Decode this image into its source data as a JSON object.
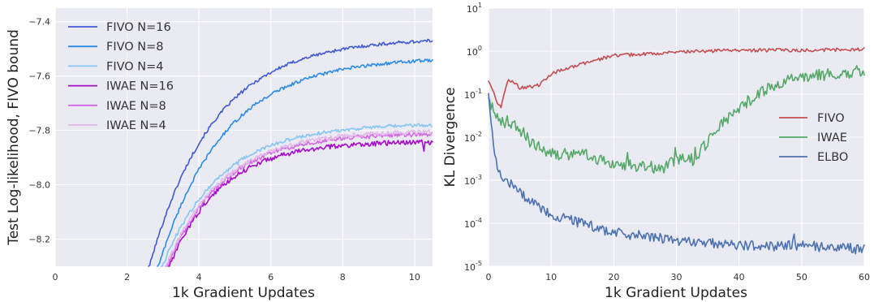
{
  "chart_data": [
    {
      "type": "line",
      "xlabel": "1k Gradient Updates",
      "ylabel": "Test Log-likelihood, FIVO bound",
      "xlim": [
        0,
        10.5
      ],
      "ylim": [
        -8.3,
        -7.35
      ],
      "xticks": [
        0,
        2,
        4,
        6,
        8,
        10
      ],
      "yticks": [
        -8.2,
        -8.0,
        -7.8,
        -7.6,
        -7.4
      ],
      "xtick_labels": [
        "0",
        "2",
        "4",
        "6",
        "8",
        "10"
      ],
      "ytick_labels": [
        "−8.2",
        "−8.0",
        "−7.8",
        "−7.6",
        "−7.4"
      ],
      "grid": true,
      "legend": "top-left",
      "series": [
        {
          "name": "FIVO N=16",
          "color": "#4059d4",
          "start": 2.6,
          "plateau": -7.46,
          "k": 0.56,
          "noise": 0.006
        },
        {
          "name": "FIVO N=8",
          "color": "#2b8be8",
          "start": 2.85,
          "plateau": -7.53,
          "k": 0.55,
          "noise": 0.006
        },
        {
          "name": "FIVO N=4",
          "color": "#86c6f5",
          "start": 2.95,
          "plateau": -7.775,
          "k": 0.62,
          "noise": 0.007
        },
        {
          "name": "IWAE N=16",
          "color": "#a50bc9",
          "start": 3.15,
          "plateau": -7.84,
          "k": 0.7,
          "noise": 0.009
        },
        {
          "name": "IWAE N=8",
          "color": "#d467e6",
          "start": 3.1,
          "plateau": -7.81,
          "k": 0.66,
          "noise": 0.008
        },
        {
          "name": "IWAE N=4",
          "color": "#e3b8e8",
          "start": 3.05,
          "plateau": -7.8,
          "k": 0.64,
          "noise": 0.008
        }
      ]
    },
    {
      "type": "line",
      "xlabel": "1k Gradient Updates",
      "ylabel": "KL Divergence",
      "yscale": "log",
      "xlim": [
        0,
        60
      ],
      "ylim": [
        1e-05,
        10
      ],
      "xticks": [
        0,
        10,
        20,
        30,
        40,
        50,
        60
      ],
      "xtick_labels": [
        "0",
        "10",
        "20",
        "30",
        "40",
        "50",
        "60"
      ],
      "ytick_labels": [
        {
          "base": "10",
          "exp": "-5"
        },
        {
          "base": "10",
          "exp": "-4"
        },
        {
          "base": "10",
          "exp": "-3"
        },
        {
          "base": "10",
          "exp": "-2"
        },
        {
          "base": "10",
          "exp": "-1"
        },
        {
          "base": "10",
          "exp": "0"
        },
        {
          "base": "10",
          "exp": "1"
        }
      ],
      "grid": true,
      "legend": "center-right",
      "series": [
        {
          "name": "FIVO",
          "color": "#c44e52",
          "anchors": [
            [
              0,
              0.2
            ],
            [
              1.5,
              0.06
            ],
            [
              2,
              0.05
            ],
            [
              3,
              0.2
            ],
            [
              4,
              0.2
            ],
            [
              5,
              0.14
            ],
            [
              8,
              0.16
            ],
            [
              10,
              0.3
            ],
            [
              15,
              0.5
            ],
            [
              20,
              0.8
            ],
            [
              25,
              0.85
            ],
            [
              30,
              0.95
            ],
            [
              40,
              1.05
            ],
            [
              50,
              1.05
            ],
            [
              60,
              1.1
            ]
          ],
          "noise": 0.04
        },
        {
          "name": "IWAE",
          "color": "#55a868",
          "anchors": [
            [
              0,
              0.08
            ],
            [
              2,
              0.02
            ],
            [
              3,
              0.025
            ],
            [
              5,
              0.015
            ],
            [
              7,
              0.007
            ],
            [
              10,
              0.004
            ],
            [
              15,
              0.004
            ],
            [
              20,
              0.0025
            ],
            [
              25,
              0.002
            ],
            [
              28,
              0.002
            ],
            [
              30,
              0.003
            ],
            [
              33,
              0.003
            ],
            [
              35,
              0.008
            ],
            [
              37,
              0.02
            ],
            [
              40,
              0.05
            ],
            [
              45,
              0.15
            ],
            [
              50,
              0.25
            ],
            [
              55,
              0.3
            ],
            [
              60,
              0.35
            ]
          ],
          "noise": 0.14
        },
        {
          "name": "ELBO",
          "color": "#4c72b0",
          "anchors": [
            [
              0,
              0.1
            ],
            [
              1,
              0.003
            ],
            [
              2,
              0.0012
            ],
            [
              3,
              0.001
            ],
            [
              5,
              0.0005
            ],
            [
              8,
              0.00025
            ],
            [
              10,
              0.00015
            ],
            [
              15,
              0.0001
            ],
            [
              20,
              6e-05
            ],
            [
              25,
              5e-05
            ],
            [
              30,
              4e-05
            ],
            [
              35,
              3.5e-05
            ],
            [
              40,
              3e-05
            ],
            [
              50,
              3e-05
            ],
            [
              60,
              2.5e-05
            ]
          ],
          "noise": 0.12
        }
      ]
    }
  ]
}
